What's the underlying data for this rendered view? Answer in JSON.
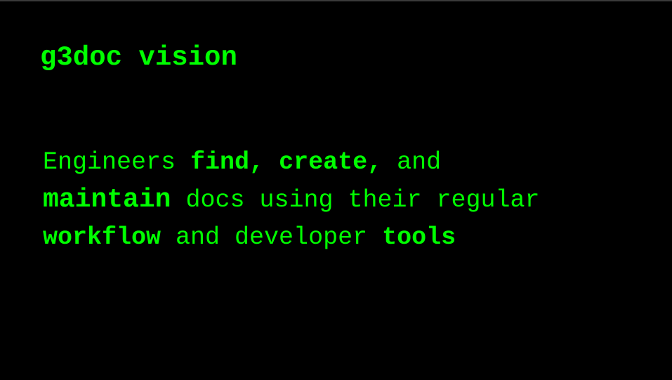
{
  "slide": {
    "title": "g3doc vision",
    "body": {
      "line1": {
        "t1": "Engineers ",
        "b1": "find,",
        "t2": " ",
        "b2": "create,",
        "t3": " and"
      },
      "line2": {
        "b1": "maintain",
        "t1": " docs using their regular"
      },
      "line3": {
        "b1": "workflow",
        "t1": " and developer ",
        "b2": "tools"
      }
    },
    "colors": {
      "background": "#000000",
      "text": "#00ff00"
    }
  }
}
